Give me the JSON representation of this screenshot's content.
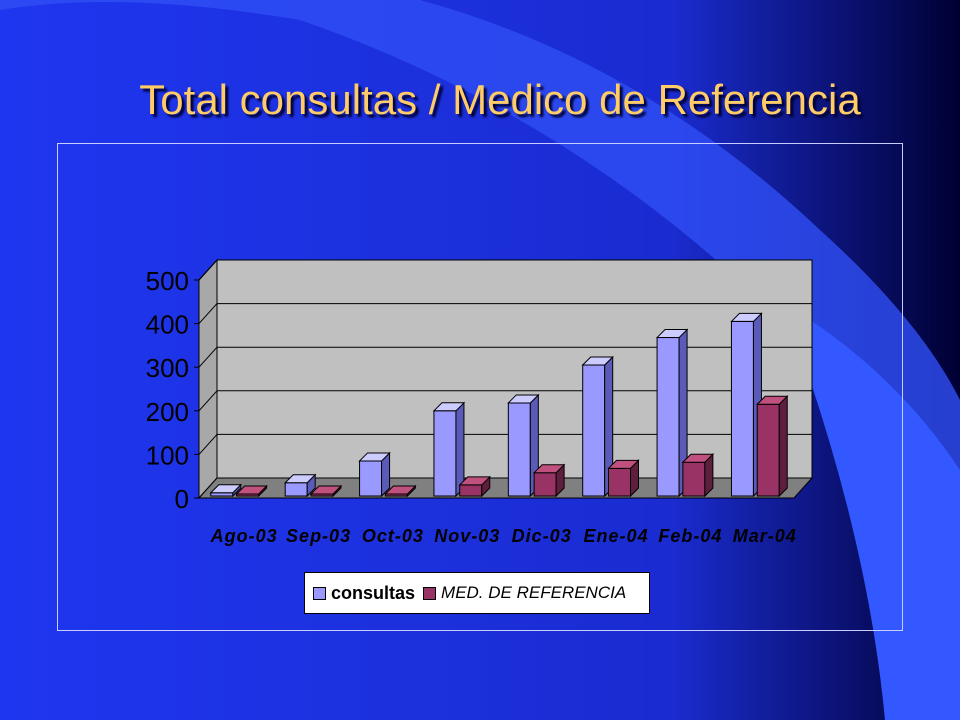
{
  "slide": {
    "title": "Total consultas / Medico de Referencia"
  },
  "colors": {
    "background": "#1a2ee0",
    "title": "#ffcc66",
    "consultas_front": "#9999ff",
    "consultas_side": "#5a5ab8",
    "consultas_top": "#ccccff",
    "referencia_front": "#993366",
    "referencia_side": "#5e1f3e",
    "referencia_top": "#c0507e",
    "plot_back": "#c0c0c0",
    "plot_floor": "#808080"
  },
  "chart_data": {
    "type": "bar",
    "title": "Total consultas / Medico de Referencia",
    "categories": [
      "Ago-03",
      "Sep-03",
      "Oct-03",
      "Nov-03",
      "Dic-03",
      "Ene-04",
      "Feb-04",
      "Mar-04"
    ],
    "series": [
      {
        "name": "consultas",
        "values": [
          12,
          35,
          85,
          200,
          218,
          305,
          368,
          405
        ]
      },
      {
        "name": "MED. DE REFERENCIA",
        "values": [
          2,
          3,
          3,
          30,
          58,
          68,
          82,
          215
        ]
      }
    ],
    "xlabel": "",
    "ylabel": "",
    "ylim": [
      0,
      500
    ],
    "yticks": [
      0,
      100,
      200,
      300,
      400,
      500
    ],
    "grid": true,
    "legend": "bottom"
  }
}
